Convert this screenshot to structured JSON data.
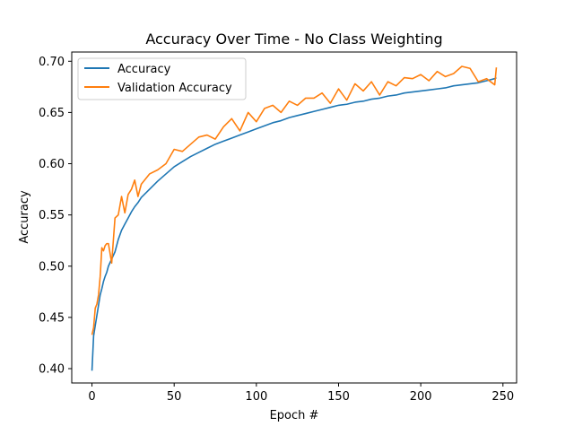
{
  "chart_data": {
    "type": "line",
    "title": "Accuracy Over Time - No Class Weighting",
    "xlabel": "Epoch #",
    "ylabel": "Accuracy",
    "xlim": [
      -12.3,
      258.3
    ],
    "ylim": [
      0.386,
      0.709
    ],
    "x_ticks": [
      0,
      50,
      100,
      150,
      200,
      250
    ],
    "x_tick_labels": [
      "0",
      "50",
      "100",
      "150",
      "200",
      "250"
    ],
    "y_ticks": [
      0.4,
      0.45,
      0.5,
      0.55,
      0.6,
      0.65,
      0.7
    ],
    "y_tick_labels": [
      "0.40",
      "0.45",
      "0.50",
      "0.55",
      "0.60",
      "0.65",
      "0.70"
    ],
    "grid": false,
    "legend_position": "upper-left",
    "x": [
      0,
      1,
      2,
      3,
      4,
      5,
      6,
      7,
      8,
      9,
      10,
      12,
      14,
      16,
      18,
      20,
      22,
      24,
      26,
      28,
      30,
      35,
      40,
      45,
      50,
      55,
      60,
      65,
      70,
      75,
      80,
      85,
      90,
      95,
      100,
      105,
      110,
      115,
      120,
      125,
      130,
      135,
      140,
      145,
      150,
      155,
      160,
      165,
      170,
      175,
      180,
      185,
      190,
      195,
      200,
      205,
      210,
      215,
      220,
      225,
      230,
      235,
      240,
      245,
      246
    ],
    "series": [
      {
        "name": "Accuracy",
        "color": "#1f77b4",
        "values": [
          0.398,
          0.432,
          0.442,
          0.452,
          0.462,
          0.472,
          0.478,
          0.485,
          0.49,
          0.494,
          0.5,
          0.507,
          0.514,
          0.526,
          0.535,
          0.541,
          0.547,
          0.553,
          0.558,
          0.562,
          0.567,
          0.575,
          0.583,
          0.59,
          0.597,
          0.602,
          0.607,
          0.611,
          0.615,
          0.619,
          0.622,
          0.625,
          0.628,
          0.631,
          0.634,
          0.637,
          0.64,
          0.642,
          0.645,
          0.647,
          0.649,
          0.651,
          0.653,
          0.655,
          0.657,
          0.658,
          0.66,
          0.661,
          0.663,
          0.664,
          0.666,
          0.667,
          0.669,
          0.67,
          0.671,
          0.672,
          0.673,
          0.674,
          0.676,
          0.677,
          0.678,
          0.679,
          0.681,
          0.683,
          0.684
        ]
      },
      {
        "name": "Validation Accuracy",
        "color": "#ff7f0e",
        "values": [
          0.433,
          0.44,
          0.459,
          0.463,
          0.472,
          0.49,
          0.518,
          0.515,
          0.52,
          0.522,
          0.522,
          0.503,
          0.547,
          0.55,
          0.568,
          0.552,
          0.57,
          0.575,
          0.584,
          0.568,
          0.58,
          0.59,
          0.594,
          0.6,
          0.614,
          0.612,
          0.619,
          0.626,
          0.628,
          0.624,
          0.636,
          0.644,
          0.632,
          0.65,
          0.641,
          0.654,
          0.657,
          0.65,
          0.661,
          0.657,
          0.664,
          0.664,
          0.669,
          0.659,
          0.673,
          0.662,
          0.678,
          0.671,
          0.68,
          0.667,
          0.68,
          0.676,
          0.684,
          0.683,
          0.687,
          0.681,
          0.69,
          0.685,
          0.688,
          0.695,
          0.693,
          0.68,
          0.683,
          0.677,
          0.694
        ]
      }
    ]
  }
}
